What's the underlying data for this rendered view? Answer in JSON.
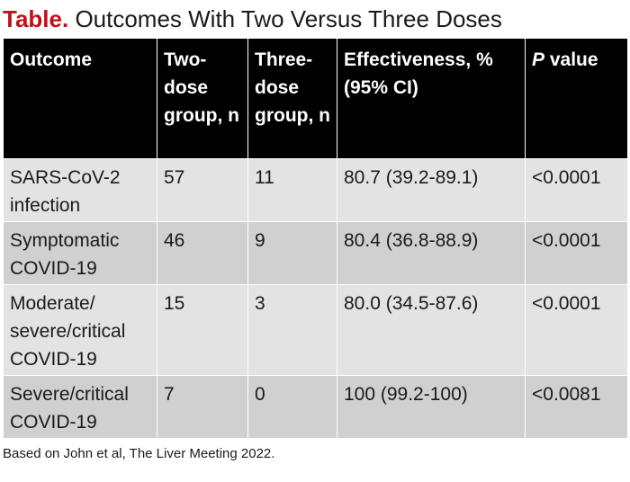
{
  "title": {
    "label": "Table.",
    "text": "Outcomes With Two Versus Three Doses"
  },
  "table": {
    "headers": {
      "outcome": "Outcome",
      "two_dose": "Two-dose group, n",
      "three_dose": "Three-dose group, n",
      "effectiveness": "Effectiveness, % (95% CI)",
      "p_value_italic": "P",
      "p_value_rest": " value"
    },
    "rows": [
      {
        "outcome": "SARS-CoV-2 infection",
        "two_dose": "57",
        "three_dose": "11",
        "effectiveness": "80.7 (39.2-89.1)",
        "p_value": "<0.0001"
      },
      {
        "outcome": "Symptomatic COVID-19",
        "two_dose": "46",
        "three_dose": "9",
        "effectiveness": "80.4 (36.8-88.9)",
        "p_value": "<0.0001"
      },
      {
        "outcome": "Moderate/ severe/critical COVID-19",
        "two_dose": "15",
        "three_dose": "3",
        "effectiveness": "80.0 (34.5-87.6)",
        "p_value": "<0.0001"
      },
      {
        "outcome": "Severe/critical COVID-19",
        "two_dose": "7",
        "three_dose": "0",
        "effectiveness": "100 (99.2-100)",
        "p_value": "<0.0081"
      }
    ]
  },
  "footnote": "Based on John et al, The Liver Meeting 2022."
}
